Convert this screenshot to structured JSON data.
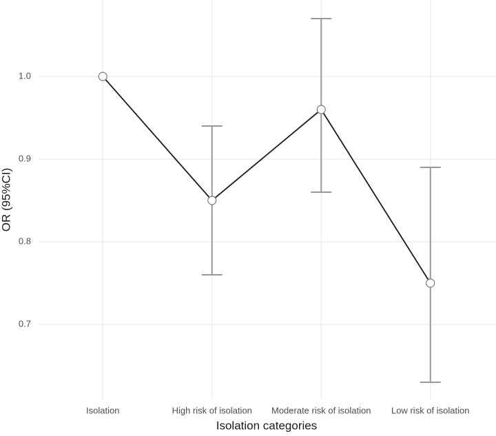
{
  "chart_data": {
    "type": "line",
    "x_label": "Isolation categories",
    "y_label": "OR (95%CI)",
    "categories": [
      "Isolation",
      "High risk of isolation",
      "Moderate risk of isolation",
      "Low risk of isolation"
    ],
    "values": [
      1.0,
      0.85,
      0.96,
      0.75
    ],
    "ci_lower": [
      null,
      0.76,
      0.86,
      0.63
    ],
    "ci_upper": [
      null,
      0.94,
      1.07,
      0.89
    ],
    "color": "#1a1a1a",
    "error_color": "#999999",
    "ylim": [
      0.61,
      1.09
    ],
    "yticks": [
      0.7,
      0.8,
      0.9,
      {
        "value": 1.0,
        "label": "1.0"
      }
    ],
    "grid": true
  }
}
